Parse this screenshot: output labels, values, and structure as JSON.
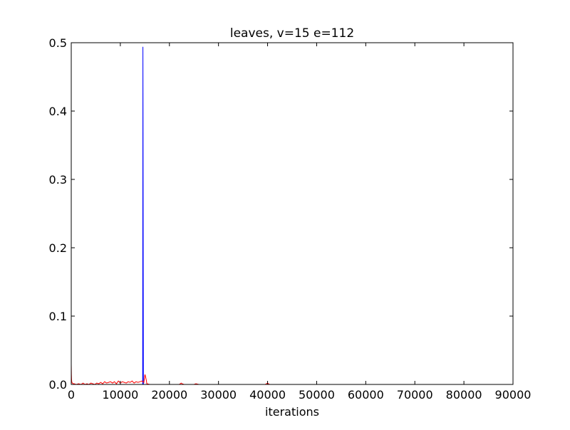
{
  "chart_data": {
    "type": "line",
    "title": "leaves, v=15 e=112",
    "xlabel": "iterations",
    "ylabel": "",
    "xlim": [
      0,
      90000
    ],
    "ylim": [
      0.0,
      0.5
    ],
    "xticks": [
      0,
      10000,
      20000,
      30000,
      40000,
      50000,
      60000,
      70000,
      80000,
      90000
    ],
    "xtick_labels": [
      "0",
      "10000",
      "20000",
      "30000",
      "40000",
      "50000",
      "60000",
      "70000",
      "80000",
      "90000"
    ],
    "yticks": [
      0.0,
      0.1,
      0.2,
      0.3,
      0.4,
      0.5
    ],
    "ytick_labels": [
      "0.0",
      "0.1",
      "0.2",
      "0.3",
      "0.4",
      "0.5"
    ],
    "grid": false,
    "legend": "none",
    "series": [
      {
        "color": "#0000ff",
        "x": [
          0,
          300,
          14550,
          14600,
          14700,
          14800,
          15200,
          82200
        ],
        "y": [
          0.0,
          0.0,
          0.0,
          0.494,
          0.0,
          0.0,
          0.0,
          0.0
        ]
      },
      {
        "color": "#ff0000",
        "x": [
          0,
          30,
          60,
          100,
          200,
          400,
          600,
          1000,
          1500,
          2000,
          2400,
          2800,
          3200,
          3600,
          4000,
          4400,
          4800,
          5200,
          5600,
          6000,
          6400,
          6800,
          7200,
          7600,
          8000,
          8400,
          8800,
          9200,
          9600,
          10000,
          10400,
          10800,
          11200,
          11600,
          12000,
          12400,
          12800,
          13200,
          13600,
          14000,
          14400,
          14600,
          14800,
          15000,
          15050,
          15300,
          15400,
          16000,
          17000,
          18000,
          20000,
          22000,
          22400,
          22600,
          23000,
          25000,
          25400,
          26000,
          30000,
          35000,
          39500,
          40000,
          40400,
          45000,
          50000,
          55000,
          60000,
          65000,
          70000,
          75000,
          80000,
          82200
        ],
        "y": [
          0.03,
          0.015,
          0.008,
          0.004,
          0.002,
          0.001,
          0.001,
          0.0,
          0.001,
          0.0,
          0.002,
          0.0,
          0.001,
          0.0,
          0.002,
          0.001,
          0.0,
          0.002,
          0.001,
          0.003,
          0.001,
          0.004,
          0.002,
          0.003,
          0.004,
          0.002,
          0.004,
          0.001,
          0.005,
          0.002,
          0.004,
          0.003,
          0.002,
          0.004,
          0.003,
          0.005,
          0.002,
          0.004,
          0.003,
          0.004,
          0.005,
          0.004,
          0.003,
          0.014,
          0.014,
          0.006,
          0.001,
          0.0,
          0.0,
          0.0,
          0.0,
          0.0,
          0.002,
          0.001,
          0.0,
          0.0,
          0.001,
          0.0,
          0.0,
          0.0,
          0.0,
          0.002,
          0.0,
          0.0,
          0.0,
          0.0,
          0.0,
          0.0,
          0.0,
          0.0,
          0.0,
          0.0
        ]
      }
    ]
  }
}
